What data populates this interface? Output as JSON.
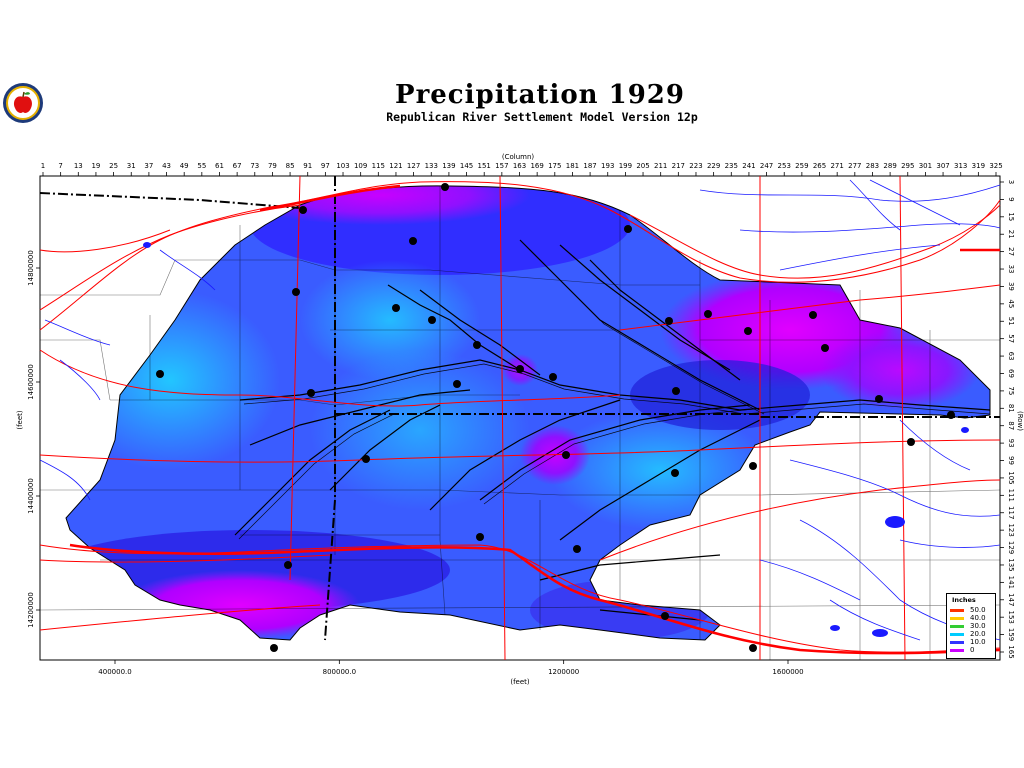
{
  "header": {
    "title": "Precipitation 1929",
    "subtitle": "Republican River Settlement Model Version 12p"
  },
  "logo": {
    "icon": "apple-logo-icon"
  },
  "axes": {
    "top_title": "(Column)",
    "top_ticks": [
      "1",
      "7",
      "13",
      "19",
      "25",
      "31",
      "37",
      "43",
      "49",
      "55",
      "61",
      "67",
      "73",
      "79",
      "85",
      "91",
      "97",
      "103",
      "109",
      "115",
      "121",
      "127",
      "133",
      "139",
      "145",
      "151",
      "157",
      "163",
      "169",
      "175",
      "181",
      "187",
      "193",
      "199",
      "205",
      "211",
      "217",
      "223",
      "229",
      "235",
      "241",
      "247",
      "253",
      "259",
      "265",
      "271",
      "277",
      "283",
      "289",
      "295",
      "301",
      "307",
      "313",
      "319",
      "325"
    ],
    "right_title": "(Row)",
    "right_ticks": [
      "3",
      "9",
      "15",
      "21",
      "27",
      "33",
      "39",
      "45",
      "51",
      "57",
      "63",
      "69",
      "75",
      "81",
      "87",
      "93",
      "99",
      "105",
      "111",
      "117",
      "123",
      "129",
      "135",
      "141",
      "147",
      "153",
      "159",
      "165"
    ],
    "bottom_title": "(feet)",
    "bottom_ticks": [
      "400000.0",
      "800000.0",
      "1200000",
      "1600000"
    ],
    "left_title": "(feet)",
    "left_ticks": [
      "14800000",
      "14600000",
      "14400000",
      "14200000"
    ]
  },
  "legend": {
    "title": "Inches",
    "entries": [
      {
        "label": "50.0",
        "color": "#ff3300"
      },
      {
        "label": "40.0",
        "color": "#ffcc00"
      },
      {
        "label": "30.0",
        "color": "#33cc33"
      },
      {
        "label": "20.0",
        "color": "#00ccff"
      },
      {
        "label": "10.0",
        "color": "#3333ff"
      },
      {
        "label": "0",
        "color": "#cc00ff"
      }
    ]
  },
  "colors": {
    "precip_high": "#22b8ff",
    "precip_mid": "#3a5cff",
    "precip_low": "#2626e6",
    "precip_min": "#b400ff",
    "roads": "#ff0000",
    "streams": "#0000cc",
    "boundaries": "#000000"
  }
}
